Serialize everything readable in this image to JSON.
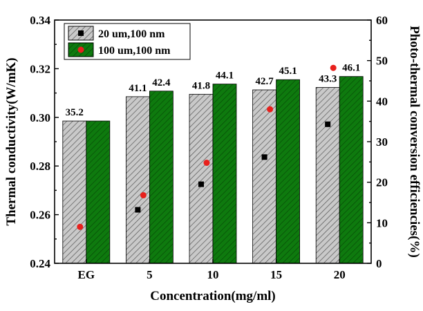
{
  "chart_data": {
    "type": "bar",
    "categories": [
      "EG",
      "5",
      "10",
      "15",
      "20"
    ],
    "xlabel": "Concentration(mg/ml)",
    "ylabel": "Thermal conductivity(W/mK)",
    "y2label": "Photo-thermal conversion efficiencies(%)",
    "ylim": [
      0.24,
      0.34
    ],
    "y_ticks": [
      "0.24",
      "0.26",
      "0.28",
      "0.30",
      "0.32",
      "0.34"
    ],
    "y2lim": [
      0,
      60
    ],
    "y2_ticks": [
      "0",
      "10",
      "20",
      "30",
      "40",
      "50",
      "60"
    ],
    "legend_position": "top-left",
    "series": [
      {
        "name": "20 um,100 nm",
        "bar_style": "gray-hatched",
        "marker": "square",
        "marker_color": "#000000",
        "thermal_conductivity": [
          0.2985,
          0.3085,
          0.3095,
          0.3113,
          0.3123
        ],
        "efficiency": [
          null,
          13.2,
          19.5,
          26.2,
          34.3
        ],
        "bar_labels": [
          "35.2",
          "41.1",
          "41.8",
          "42.7",
          "43.3"
        ]
      },
      {
        "name": "100 um,100 nm",
        "bar_style": "green-hatched",
        "marker": "circle",
        "marker_color": "#e8201c",
        "thermal_conductivity": [
          0.2985,
          0.3108,
          0.3137,
          0.3155,
          0.3168
        ],
        "efficiency": [
          9.0,
          16.8,
          24.8,
          38.0,
          48.2
        ],
        "bar_labels": [
          "",
          "42.4",
          "44.1",
          "45.1",
          "46.1"
        ]
      }
    ],
    "colors": {
      "gray_bar": "#c7c7c7",
      "green_bar": "#0e7a0e",
      "red_marker": "#e8201c",
      "black_marker": "#000000"
    }
  }
}
